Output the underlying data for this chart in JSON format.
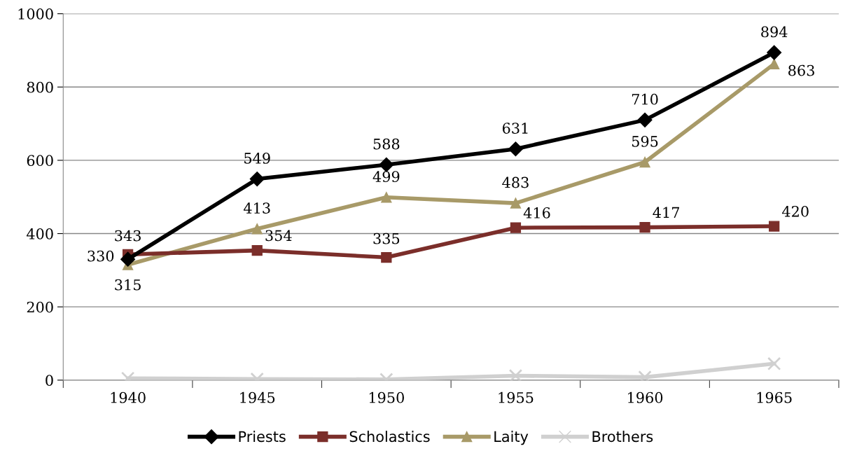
{
  "chart_data": {
    "type": "line",
    "categories": [
      "1940",
      "1945",
      "1950",
      "1955",
      "1960",
      "1965"
    ],
    "series": [
      {
        "name": "Priests",
        "color": "#000000",
        "marker": "diamond",
        "values": [
          330,
          549,
          588,
          631,
          710,
          894
        ],
        "value_labels": [
          "330",
          "549",
          "588",
          "631",
          "710",
          "894"
        ]
      },
      {
        "name": "Scholastics",
        "color": "#7b2e2a",
        "marker": "square",
        "values": [
          343,
          354,
          335,
          416,
          417,
          420
        ],
        "value_labels": [
          "343",
          "354",
          "335",
          "416",
          "417",
          "420"
        ]
      },
      {
        "name": "Laity",
        "color": "#a89a68",
        "marker": "triangle",
        "values": [
          315,
          413,
          499,
          483,
          595,
          863
        ],
        "value_labels": [
          "315",
          "413",
          "499",
          "483",
          "595",
          "863"
        ]
      },
      {
        "name": "Brothers",
        "color": "#d0d0d0",
        "marker": "cross",
        "values": [
          5,
          3,
          2,
          12,
          8,
          45
        ],
        "value_labels": [
          null,
          null,
          null,
          null,
          null,
          null
        ]
      }
    ],
    "ylim": [
      0,
      1000
    ],
    "yticks": [
      0,
      200,
      400,
      600,
      800,
      1000
    ],
    "grid": "y",
    "legend": "bottom"
  }
}
